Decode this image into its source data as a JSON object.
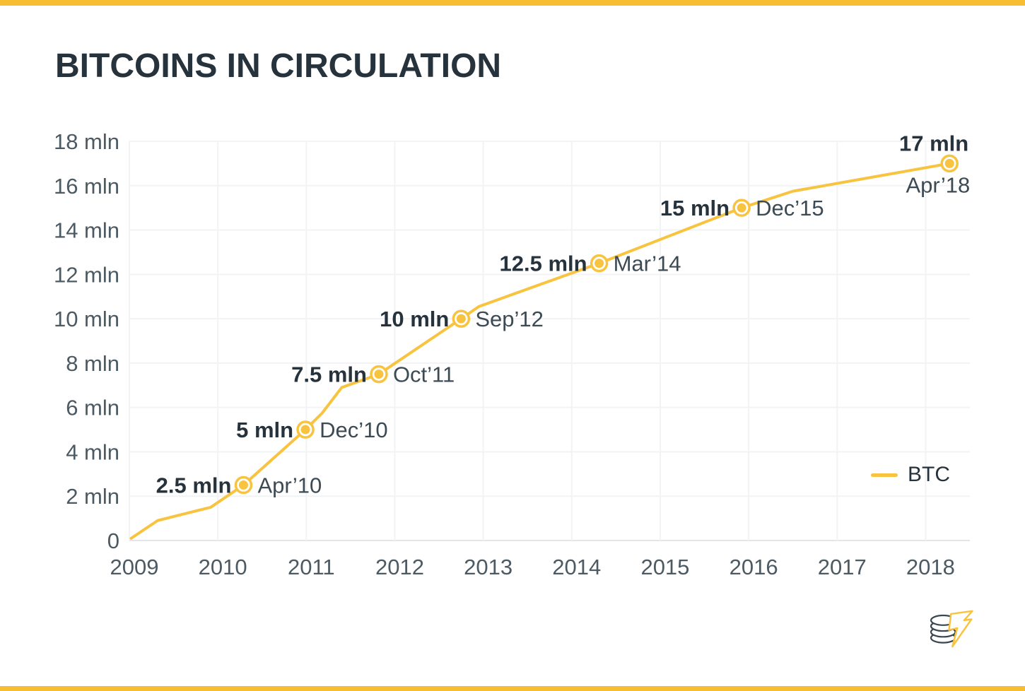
{
  "header": {
    "title": "BITCOINS IN CIRCULATION"
  },
  "colors": {
    "accent_bar": "#F8BE32",
    "line": "#F8C33E",
    "marker_fill": "#F8C33E",
    "marker_ring": "#F8C33E",
    "grid": "#F2F3F4",
    "zero_line": "#E2E6E9",
    "tick_text": "#4C5A63",
    "milestone_value_text": "#26323C",
    "milestone_date_text": "#3C4A54",
    "logo_coin_stroke": "#3A4750",
    "logo_bolt_stroke": "#F8C33E"
  },
  "chart_data": {
    "type": "line",
    "title": "BITCOINS IN CIRCULATION",
    "xlabel": "",
    "ylabel": "",
    "unit": "mln",
    "x_axis": {
      "range": [
        2009,
        2018.5
      ],
      "ticks": [
        {
          "value": 2009,
          "label": "2009"
        },
        {
          "value": 2010,
          "label": "2010"
        },
        {
          "value": 2011,
          "label": "2011"
        },
        {
          "value": 2012,
          "label": "2012"
        },
        {
          "value": 2013,
          "label": "2013"
        },
        {
          "value": 2014,
          "label": "2014"
        },
        {
          "value": 2015,
          "label": "2015"
        },
        {
          "value": 2016,
          "label": "2016"
        },
        {
          "value": 2017,
          "label": "2017"
        },
        {
          "value": 2018,
          "label": "2018"
        }
      ]
    },
    "y_axis": {
      "range": [
        0,
        18
      ],
      "ticks": [
        {
          "value": 0,
          "label": "0"
        },
        {
          "value": 2,
          "label": "2 mln"
        },
        {
          "value": 4,
          "label": "4 mln"
        },
        {
          "value": 6,
          "label": "6 mln"
        },
        {
          "value": 8,
          "label": "8 mln"
        },
        {
          "value": 10,
          "label": "10 mln"
        },
        {
          "value": 12,
          "label": "12 mln"
        },
        {
          "value": 14,
          "label": "14 mln"
        },
        {
          "value": 16,
          "label": "16 mln"
        },
        {
          "value": 18,
          "label": "18 mln"
        }
      ]
    },
    "series": [
      {
        "name": "BTC",
        "points": [
          [
            2009.02,
            0.1
          ],
          [
            2009.32,
            0.9
          ],
          [
            2009.62,
            1.2
          ],
          [
            2009.92,
            1.5
          ],
          [
            2010.29,
            2.5
          ],
          [
            2010.99,
            5.0
          ],
          [
            2011.18,
            5.75
          ],
          [
            2011.4,
            6.9
          ],
          [
            2011.82,
            7.5
          ],
          [
            2012.75,
            10.0
          ],
          [
            2012.95,
            10.55
          ],
          [
            2014.31,
            12.5
          ],
          [
            2015.92,
            15.0
          ],
          [
            2016.5,
            15.75
          ],
          [
            2018.27,
            17.0
          ]
        ]
      }
    ],
    "milestones": [
      {
        "x": 2010.29,
        "y": 2.5,
        "value_label": "2.5 mln",
        "date_label": "Apr’10",
        "placement": "sides"
      },
      {
        "x": 2010.99,
        "y": 5.0,
        "value_label": "5 mln",
        "date_label": "Dec’10",
        "placement": "sides"
      },
      {
        "x": 2011.82,
        "y": 7.5,
        "value_label": "7.5 mln",
        "date_label": "Oct’11",
        "placement": "sides"
      },
      {
        "x": 2012.75,
        "y": 10.0,
        "value_label": "10 mln",
        "date_label": "Sep’12",
        "placement": "sides"
      },
      {
        "x": 2014.31,
        "y": 12.5,
        "value_label": "12.5 mln",
        "date_label": "Mar’14",
        "placement": "sides"
      },
      {
        "x": 2015.92,
        "y": 15.0,
        "value_label": "15 mln",
        "date_label": "Dec’15",
        "placement": "sides"
      },
      {
        "x": 2018.27,
        "y": 17.0,
        "value_label": "17 mln",
        "date_label": "Apr’18",
        "placement": "stacked"
      }
    ],
    "legend": {
      "position": "right",
      "entries": [
        {
          "label": "BTC",
          "color": "#F8C33E"
        }
      ]
    },
    "grid": true
  }
}
